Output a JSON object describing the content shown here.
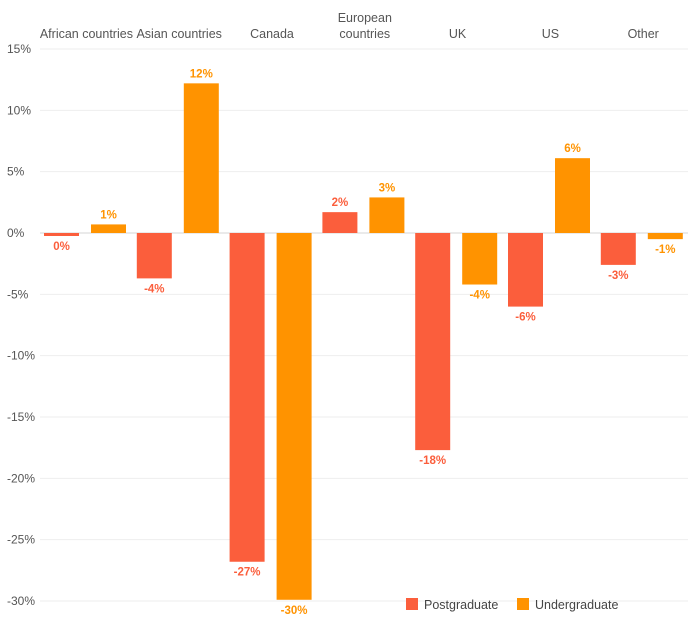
{
  "chart_data": {
    "type": "bar",
    "categories": [
      [
        "African countries"
      ],
      [
        "Asian countries"
      ],
      [
        "Canada"
      ],
      [
        "European",
        "countries"
      ],
      [
        "UK"
      ],
      [
        "US"
      ],
      [
        "Other"
      ]
    ],
    "series": [
      {
        "name": "Postgraduate",
        "color": "#fb5e3c",
        "values": [
          -0.2,
          -3.7,
          -26.8,
          1.7,
          -17.7,
          -6.0,
          -2.6
        ],
        "labels": [
          "0%",
          "-4%",
          "-27%",
          "2%",
          "-18%",
          "-6%",
          "-3%"
        ]
      },
      {
        "name": "Undergraduate",
        "color": "#ff9300",
        "values": [
          0.7,
          12.2,
          -29.9,
          2.9,
          -4.2,
          6.1,
          -0.5
        ],
        "labels": [
          "1%",
          "12%",
          "-30%",
          "3%",
          "-4%",
          "6%",
          "-1%"
        ]
      }
    ],
    "ylim": [
      -30,
      15
    ],
    "yticks": [
      15,
      10,
      5,
      0,
      -5,
      -10,
      -15,
      -20,
      -25,
      -30
    ],
    "ytick_labels": [
      "15%",
      "10%",
      "5%",
      "0%",
      "-5%",
      "-10%",
      "-15%",
      "-20%",
      "-25%",
      "-30%"
    ],
    "grid": true,
    "legend_position": "bottom-right",
    "title": "",
    "xlabel": "",
    "ylabel": ""
  }
}
